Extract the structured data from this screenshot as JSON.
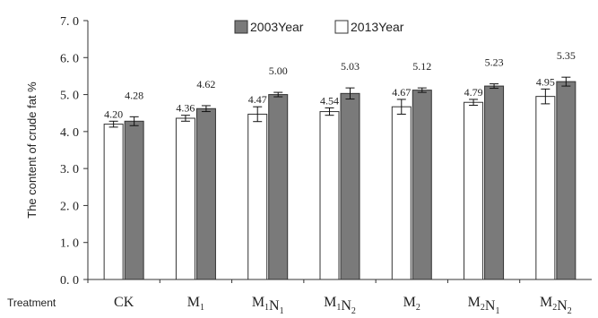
{
  "chart_data": {
    "type": "bar",
    "ylabel": "The content of crude fat %",
    "x_row_label": "Treatment",
    "ylim": [
      0,
      7
    ],
    "yticks": [
      "0. 0",
      "1. 0",
      "2. 0",
      "3. 0",
      "4. 0",
      "5. 0",
      "6. 0",
      "7. 0"
    ],
    "categories": [
      {
        "name": "CK",
        "parts": [
          {
            "t": "CK",
            "s": ""
          }
        ]
      },
      {
        "name": "M1",
        "parts": [
          {
            "t": "M",
            "s": "1"
          }
        ]
      },
      {
        "name": "M1N1",
        "parts": [
          {
            "t": "M",
            "s": "1"
          },
          {
            "t": "N",
            "s": "1"
          }
        ]
      },
      {
        "name": "M1N2",
        "parts": [
          {
            "t": "M",
            "s": "1"
          },
          {
            "t": "N",
            "s": "2"
          }
        ]
      },
      {
        "name": "M2",
        "parts": [
          {
            "t": "M",
            "s": "2"
          }
        ]
      },
      {
        "name": "M2N1",
        "parts": [
          {
            "t": "M",
            "s": "2"
          },
          {
            "t": "N",
            "s": "1"
          }
        ]
      },
      {
        "name": "M2N2",
        "parts": [
          {
            "t": "M",
            "s": "2"
          },
          {
            "t": "N",
            "s": "2"
          }
        ]
      }
    ],
    "series": [
      {
        "name": "2013Year",
        "color": "#ffffff",
        "values": [
          4.2,
          4.36,
          4.47,
          4.54,
          4.67,
          4.79,
          4.95
        ],
        "labels": [
          "4.20",
          "4.36",
          "4.47",
          "4.54",
          "4.67",
          "4.79",
          "4.95"
        ],
        "errors": [
          0.08,
          0.08,
          0.2,
          0.1,
          0.2,
          0.08,
          0.2
        ]
      },
      {
        "name": "2003Year",
        "color": "#7a7a7a",
        "values": [
          4.28,
          4.62,
          5.0,
          5.03,
          5.12,
          5.23,
          5.35
        ],
        "labels": [
          "4.28",
          "4.62",
          "5.00",
          "5.03",
          "5.12",
          "5.23",
          "5.35"
        ],
        "errors": [
          0.12,
          0.08,
          0.06,
          0.15,
          0.06,
          0.06,
          0.12
        ]
      }
    ],
    "legend": {
      "placement": "top-center",
      "items": [
        {
          "name": "2003Year",
          "color": "#7a7a7a"
        },
        {
          "name": "2013Year",
          "color": "#ffffff"
        }
      ]
    },
    "grid": false
  }
}
